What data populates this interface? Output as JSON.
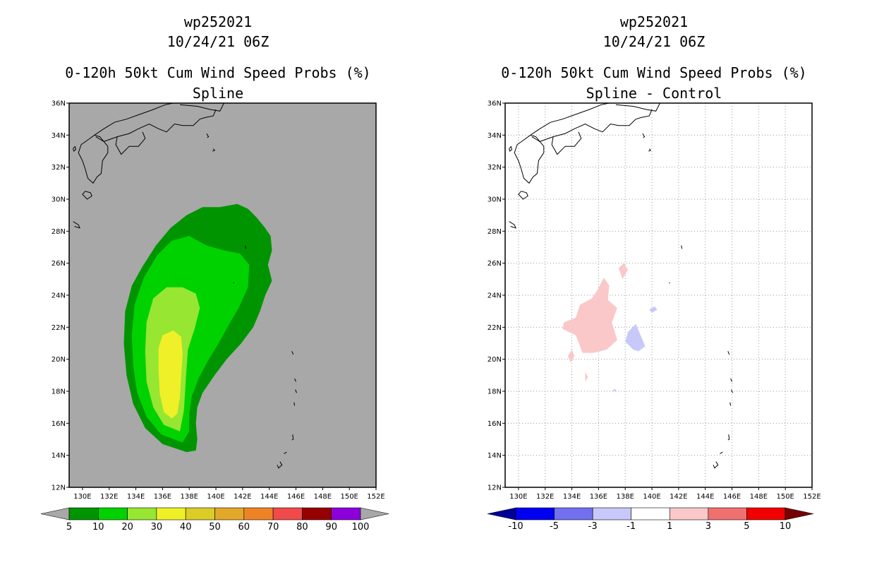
{
  "chart_data": [
    {
      "type": "heatmap",
      "title_lines": [
        "wp252021",
        "10/24/21 06Z",
        "0-120h 50kt Cum Wind Speed Probs (%)",
        "Spline"
      ],
      "xlabel": "",
      "ylabel": "",
      "xlim": [
        129,
        152
      ],
      "ylim": [
        12,
        36
      ],
      "x_ticks": [
        130,
        132,
        134,
        136,
        138,
        140,
        142,
        144,
        146,
        148,
        150,
        152
      ],
      "x_tick_labels": [
        "130E",
        "132E",
        "134E",
        "136E",
        "138E",
        "140E",
        "142E",
        "144E",
        "146E",
        "148E",
        "150E",
        "152E"
      ],
      "y_ticks": [
        12,
        14,
        16,
        18,
        20,
        22,
        24,
        26,
        28,
        30,
        32,
        34,
        36
      ],
      "y_tick_labels": [
        "12N",
        "14N",
        "16N",
        "18N",
        "20N",
        "22N",
        "24N",
        "26N",
        "28N",
        "30N",
        "32N",
        "34N",
        "36N"
      ],
      "grid": false,
      "background_color": "#a8a8a8",
      "colorbar": {
        "labels": [
          "5",
          "10",
          "20",
          "30",
          "40",
          "50",
          "60",
          "70",
          "80",
          "90",
          "100"
        ],
        "colors": [
          "#009500",
          "#00d200",
          "#96e632",
          "#f0f028",
          "#dccc28",
          "#e2a82a",
          "#ee8326",
          "#f04a4a",
          "#960000",
          "#8c00dc"
        ],
        "end_low": "#a8a8a8",
        "end_high": "#a8a8a8"
      },
      "contours": [
        {
          "level": 5,
          "color": "#009500",
          "points": [
            [
              137.8,
              14.2
            ],
            [
              136.0,
              14.7
            ],
            [
              134.7,
              15.7
            ],
            [
              133.8,
              17.2
            ],
            [
              133.3,
              19.0
            ],
            [
              133.1,
              21.0
            ],
            [
              133.2,
              23.0
            ],
            [
              133.7,
              24.6
            ],
            [
              134.5,
              25.8
            ],
            [
              135.5,
              27.1
            ],
            [
              136.6,
              28.2
            ],
            [
              137.8,
              29.0
            ],
            [
              139.0,
              29.5
            ],
            [
              140.3,
              29.5
            ],
            [
              141.6,
              29.7
            ],
            [
              142.4,
              29.4
            ],
            [
              143.0,
              28.9
            ],
            [
              143.6,
              28.3
            ],
            [
              144.1,
              27.7
            ],
            [
              144.2,
              26.8
            ],
            [
              143.9,
              25.9
            ],
            [
              144.2,
              24.9
            ],
            [
              143.7,
              24.0
            ],
            [
              143.3,
              23.0
            ],
            [
              142.8,
              22.0
            ],
            [
              141.9,
              21.0
            ],
            [
              140.8,
              20.0
            ],
            [
              139.9,
              19.0
            ],
            [
              139.0,
              17.9
            ],
            [
              138.6,
              17.0
            ],
            [
              138.5,
              16.0
            ],
            [
              138.6,
              15.0
            ],
            [
              138.5,
              14.3
            ]
          ]
        },
        {
          "level": 10,
          "color": "#00d200",
          "points": [
            [
              137.5,
              14.8
            ],
            [
              135.9,
              15.3
            ],
            [
              134.8,
              16.4
            ],
            [
              134.1,
              17.9
            ],
            [
              133.8,
              19.6
            ],
            [
              133.7,
              21.5
            ],
            [
              133.9,
              23.4
            ],
            [
              134.6,
              25.1
            ],
            [
              135.6,
              26.5
            ],
            [
              136.7,
              27.4
            ],
            [
              138.0,
              27.7
            ],
            [
              139.3,
              27.1
            ],
            [
              140.6,
              26.8
            ],
            [
              141.8,
              26.6
            ],
            [
              142.5,
              25.9
            ],
            [
              142.4,
              24.5
            ],
            [
              141.7,
              23.2
            ],
            [
              141.0,
              22.2
            ],
            [
              140.2,
              21.0
            ],
            [
              139.4,
              19.9
            ],
            [
              138.7,
              18.8
            ],
            [
              138.2,
              17.7
            ],
            [
              138.0,
              16.6
            ],
            [
              138.0,
              15.5
            ]
          ]
        },
        {
          "level": 20,
          "color": "#96e632",
          "points": [
            [
              137.3,
              15.5
            ],
            [
              136.1,
              15.9
            ],
            [
              135.3,
              17.0
            ],
            [
              134.8,
              18.6
            ],
            [
              134.7,
              20.5
            ],
            [
              134.8,
              22.3
            ],
            [
              135.3,
              23.8
            ],
            [
              136.3,
              24.5
            ],
            [
              137.5,
              24.5
            ],
            [
              138.5,
              24.1
            ],
            [
              138.8,
              23.2
            ],
            [
              138.4,
              21.9
            ],
            [
              137.9,
              20.6
            ],
            [
              137.8,
              19.4
            ],
            [
              137.7,
              18.1
            ],
            [
              137.6,
              16.8
            ]
          ]
        },
        {
          "level": 30,
          "color": "#f0f028",
          "points": [
            [
              136.7,
              16.3
            ],
            [
              136.1,
              16.7
            ],
            [
              135.8,
              17.8
            ],
            [
              135.7,
              19.3
            ],
            [
              135.7,
              20.7
            ],
            [
              136.0,
              21.5
            ],
            [
              136.8,
              21.8
            ],
            [
              137.4,
              21.4
            ],
            [
              137.5,
              20.3
            ],
            [
              137.4,
              19.0
            ],
            [
              137.3,
              17.6
            ],
            [
              137.1,
              16.6
            ]
          ]
        }
      ]
    },
    {
      "type": "heatmap",
      "title_lines": [
        "wp252021",
        "10/24/21 06Z",
        "0-120h 50kt Cum Wind Speed Probs (%)",
        "Spline - Control"
      ],
      "xlabel": "",
      "ylabel": "",
      "xlim": [
        129,
        152
      ],
      "ylim": [
        12,
        36
      ],
      "x_ticks": [
        130,
        132,
        134,
        136,
        138,
        140,
        142,
        144,
        146,
        148,
        150,
        152
      ],
      "x_tick_labels": [
        "130E",
        "132E",
        "134E",
        "136E",
        "138E",
        "140E",
        "142E",
        "144E",
        "146E",
        "148E",
        "150E",
        "152E"
      ],
      "y_ticks": [
        12,
        14,
        16,
        18,
        20,
        22,
        24,
        26,
        28,
        30,
        32,
        34,
        36
      ],
      "y_tick_labels": [
        "12N",
        "14N",
        "16N",
        "18N",
        "20N",
        "22N",
        "24N",
        "26N",
        "28N",
        "30N",
        "32N",
        "34N",
        "36N"
      ],
      "grid": true,
      "background_color": "#ffffff",
      "colorbar": {
        "labels": [
          "-10",
          "-5",
          "-3",
          "-1",
          "1",
          "3",
          "5",
          "10"
        ],
        "colors": [
          "#0000f0",
          "#7070f0",
          "#c8c8fa",
          "#ffffff",
          "#fac8c8",
          "#f07070",
          "#f00000"
        ],
        "end_low": "#000096",
        "end_high": "#780000"
      },
      "contours": [
        {
          "level": 1,
          "color": "#fac8c8",
          "points": [
            [
              134.8,
              20.4
            ],
            [
              134.3,
              21.5
            ],
            [
              133.3,
              21.9
            ],
            [
              133.4,
              22.3
            ],
            [
              134.3,
              22.6
            ],
            [
              134.6,
              23.4
            ],
            [
              135.5,
              23.8
            ],
            [
              135.9,
              24.3
            ],
            [
              136.4,
              25.1
            ],
            [
              136.8,
              24.6
            ],
            [
              136.7,
              23.7
            ],
            [
              137.4,
              23.2
            ],
            [
              137.0,
              22.3
            ],
            [
              137.4,
              21.2
            ],
            [
              136.6,
              20.6
            ],
            [
              135.6,
              20.4
            ]
          ]
        },
        {
          "level": 1,
          "color": "#fac8c8",
          "points": [
            [
              137.8,
              25.0
            ],
            [
              138.2,
              25.6
            ],
            [
              137.9,
              26.0
            ],
            [
              137.5,
              25.7
            ]
          ]
        },
        {
          "level": 1,
          "color": "#fac8c8",
          "points": [
            [
              133.9,
              19.8
            ],
            [
              134.2,
              20.2
            ],
            [
              134.0,
              20.6
            ],
            [
              133.7,
              20.2
            ]
          ]
        },
        {
          "level": 1,
          "color": "#fac8c8",
          "points": [
            [
              135.0,
              18.6
            ],
            [
              135.2,
              18.9
            ],
            [
              135.0,
              19.2
            ]
          ]
        },
        {
          "level": -1,
          "color": "#c8c8fa",
          "points": [
            [
              138.6,
              20.6
            ],
            [
              138.0,
              21.1
            ],
            [
              138.2,
              21.7
            ],
            [
              138.8,
              22.2
            ],
            [
              139.3,
              21.2
            ],
            [
              139.5,
              20.8
            ],
            [
              139.0,
              20.5
            ]
          ]
        },
        {
          "level": -1,
          "color": "#c8c8fa",
          "points": [
            [
              140.0,
              22.9
            ],
            [
              140.4,
              23.1
            ],
            [
              140.2,
              23.3
            ],
            [
              139.8,
              23.1
            ]
          ]
        },
        {
          "level": -1,
          "color": "#c8c8fa",
          "points": [
            [
              137.0,
              18.0
            ],
            [
              137.4,
              18.0
            ],
            [
              137.2,
              18.15
            ]
          ]
        }
      ]
    }
  ]
}
